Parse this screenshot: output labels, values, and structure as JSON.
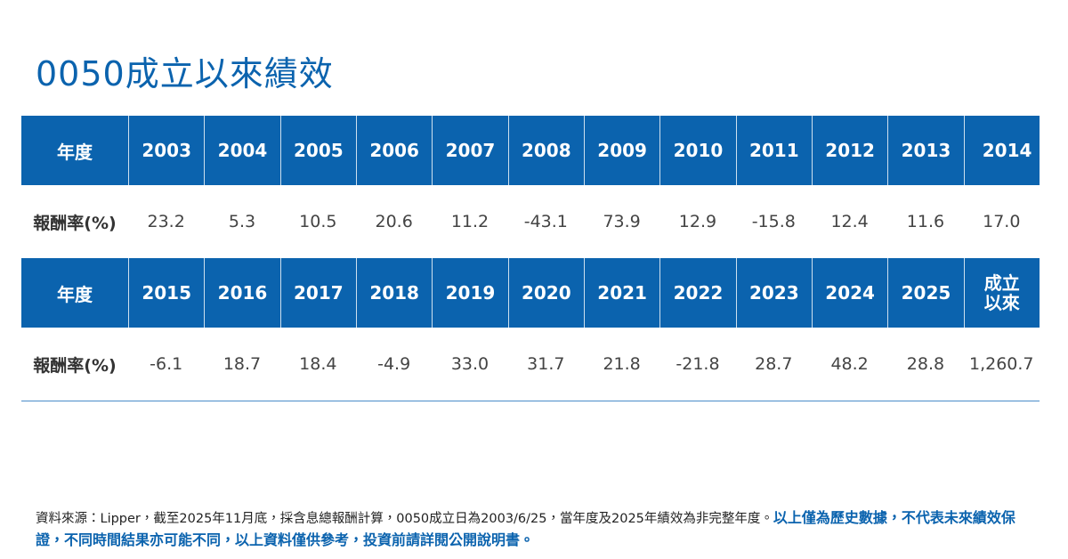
{
  "title": "0050成立以來績效",
  "table": {
    "blocks": [
      {
        "header": [
          "年度",
          "2003",
          "2004",
          "2005",
          "2006",
          "2007",
          "2008",
          "2009",
          "2010",
          "2011",
          "2012",
          "2013",
          "2014"
        ],
        "row": [
          "報酬率(%)",
          "23.2",
          "5.3",
          "10.5",
          "20.6",
          "11.2",
          "-43.1",
          "73.9",
          "12.9",
          "-15.8",
          "12.4",
          "11.6",
          "17.0"
        ]
      },
      {
        "header": [
          "年度",
          "2015",
          "2016",
          "2017",
          "2018",
          "2019",
          "2020",
          "2021",
          "2022",
          "2023",
          "2024",
          "2025",
          "成立以來"
        ],
        "row": [
          "報酬率(%)",
          "-6.1",
          "18.7",
          "18.4",
          "-4.9",
          "33.0",
          "31.7",
          "21.8",
          "-21.8",
          "28.7",
          "48.2",
          "28.8",
          "1,260.7"
        ]
      }
    ]
  },
  "footnote": {
    "source": "資料來源：Lipper，截至2025年11月底，採含息總報酬計算，0050成立日為2003/6/25，當年度及2025年績效為非完整年度。",
    "disclaimer": "以上僅為歷史數據，不代表未來績效保證，不同時間結果亦可能不同，以上資料僅供參考，投資前請詳閱公開說明書。"
  }
}
